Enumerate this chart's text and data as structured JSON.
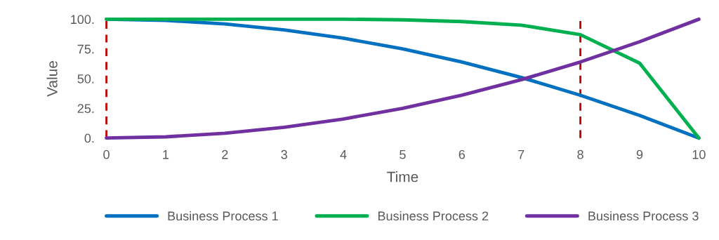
{
  "chart_data": {
    "type": "line",
    "xlabel": "Time",
    "ylabel": "Value",
    "x": [
      0,
      1,
      2,
      3,
      4,
      5,
      6,
      7,
      8,
      9,
      10
    ],
    "series": [
      {
        "name": "Business Process 1",
        "color": "#0070c0",
        "values": [
          100,
          99,
          96,
          91,
          84,
          75,
          64,
          51,
          36,
          19,
          0
        ]
      },
      {
        "name": "Business Process 2",
        "color": "#00b050",
        "values": [
          100,
          100,
          100,
          100,
          100,
          99.5,
          98,
          95,
          87,
          63,
          0
        ]
      },
      {
        "name": "Business Process 3",
        "color": "#7030a0",
        "values": [
          0,
          1,
          4,
          9,
          16,
          25,
          36,
          49,
          64,
          81,
          100
        ]
      }
    ],
    "xlim": [
      0,
      10
    ],
    "xticks": [
      0,
      1,
      2,
      3,
      4,
      5,
      6,
      7,
      8,
      9,
      10
    ],
    "ylim": [
      0,
      100
    ],
    "yticks": [
      {
        "value": 0,
        "label": "0."
      },
      {
        "value": 25,
        "label": "25."
      },
      {
        "value": 50,
        "label": "50."
      },
      {
        "value": 75,
        "label": "75."
      },
      {
        "value": 100,
        "label": "100."
      }
    ],
    "ref_lines": [
      {
        "axis": "x",
        "value": 0,
        "color": "#c00000",
        "line_style": "dashed"
      },
      {
        "axis": "x",
        "value": 8,
        "color": "#c00000",
        "line_style": "dashed"
      }
    ],
    "grid": false,
    "legend": "bottom",
    "marker": "none",
    "line_style": "solid"
  }
}
